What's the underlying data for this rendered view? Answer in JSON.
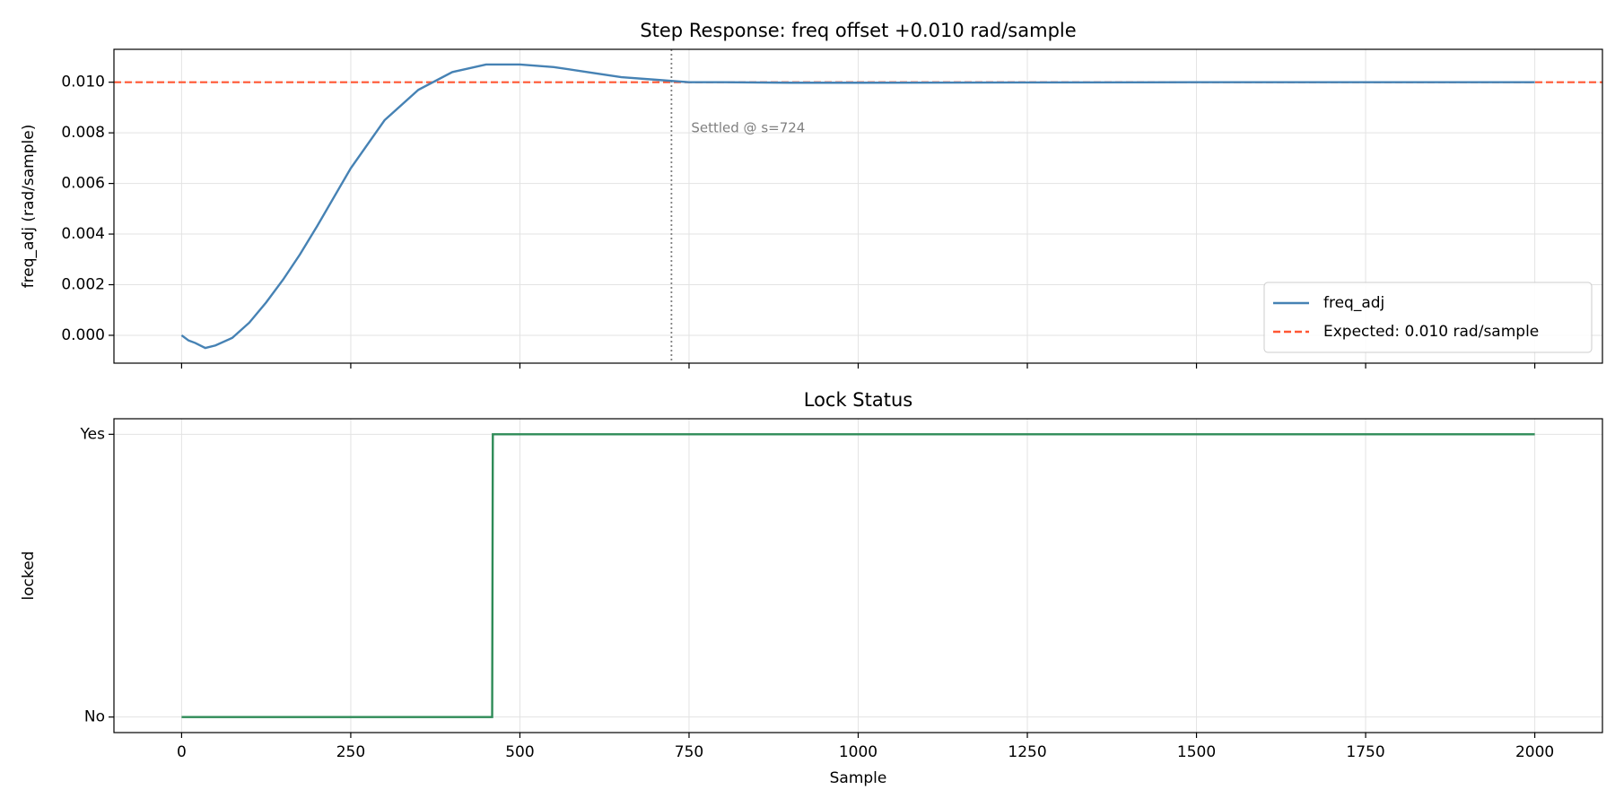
{
  "chart_data": [
    {
      "type": "line",
      "title": "Step Response: freq offset +0.010 rad/sample",
      "y_label": "freq_adj (rad/sample)",
      "xlim": [
        -100,
        2100
      ],
      "ylim": [
        -0.0011,
        0.0113
      ],
      "xticks": [
        0,
        250,
        500,
        750,
        1000,
        1250,
        1500,
        1750,
        2000
      ],
      "yticks": [
        {
          "value": 0,
          "label": "0.000"
        },
        {
          "value": 0.002,
          "label": "0.002"
        },
        {
          "value": 0.004,
          "label": "0.004"
        },
        {
          "value": 0.006,
          "label": "0.006"
        },
        {
          "value": 0.008,
          "label": "0.008"
        },
        {
          "value": 0.01,
          "label": "0.010"
        }
      ],
      "grid": true,
      "legend": "lower right",
      "x": [
        0,
        10,
        20,
        35,
        50,
        75,
        100,
        125,
        150,
        175,
        200,
        250,
        300,
        350,
        400,
        450,
        475,
        500,
        550,
        600,
        650,
        700,
        750,
        800,
        900,
        1000,
        1250,
        1500,
        1750,
        2000
      ],
      "series": [
        {
          "name": "freq_adj",
          "color": "#4682b4",
          "values": [
            0.0,
            -0.0002,
            -0.0003,
            -0.0005,
            -0.0004,
            -0.0001,
            0.0005,
            0.0013,
            0.0022,
            0.0032,
            0.0043,
            0.0066,
            0.0085,
            0.0097,
            0.0104,
            0.0107,
            0.0107,
            0.0107,
            0.0106,
            0.0104,
            0.0102,
            0.0101,
            0.01,
            0.01,
            0.00998,
            0.00998,
            0.00999,
            0.01,
            0.01,
            0.01
          ]
        }
      ],
      "hlines": [
        {
          "name": "Expected: 0.010 rad/sample",
          "color": "#ff5733",
          "value": 0.01
        }
      ],
      "vlines": [
        {
          "value": 724,
          "color": "#808080",
          "label": "Settled @ s=724"
        }
      ]
    },
    {
      "type": "step",
      "title": "Lock Status",
      "x_label": "Sample",
      "y_label": "locked",
      "xlim": [
        -100,
        2100
      ],
      "ylim": [
        -0.055,
        1.055
      ],
      "xticks": [
        0,
        250,
        500,
        750,
        1000,
        1250,
        1500,
        1750,
        2000
      ],
      "yticks": [
        {
          "value": 0,
          "label": "No"
        },
        {
          "value": 1,
          "label": "Yes"
        }
      ],
      "grid": true,
      "x": [
        0,
        459,
        460,
        2000
      ],
      "series": [
        {
          "name": "locked",
          "color": "#2e8b57",
          "values": [
            0,
            0,
            1,
            1
          ]
        }
      ]
    }
  ]
}
